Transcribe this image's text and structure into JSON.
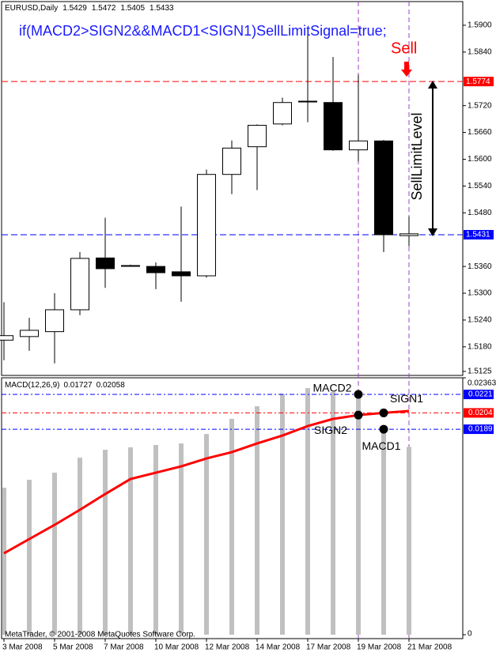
{
  "chart_data": [
    {
      "type": "candlestick",
      "title": "EURUSD,Daily",
      "categories": [
        "3 Mar 2008",
        null,
        "5 Mar 2008",
        null,
        "7 Mar 2008",
        null,
        "10 Mar 2008",
        null,
        "12 Mar 2008",
        null,
        "14 Mar 2008",
        null,
        "17 Mar 2008",
        null,
        "19 Mar 2008",
        null,
        "21 Mar 2008"
      ],
      "open": [
        1.5195,
        1.5203,
        1.5214,
        1.5263,
        1.5379,
        1.5362,
        1.536,
        1.5348,
        1.5339,
        1.5566,
        1.5628,
        1.5679,
        1.5729,
        1.5727,
        1.5621,
        1.5641,
        1.5429
      ],
      "high": [
        1.528,
        1.5245,
        1.53,
        1.5392,
        1.5469,
        1.5364,
        1.5369,
        1.5494,
        1.5577,
        1.5642,
        1.5678,
        1.5738,
        1.5882,
        1.5829,
        1.5789,
        1.5643,
        1.5472
      ],
      "low": [
        1.515,
        1.5171,
        1.5143,
        1.5251,
        1.5312,
        1.536,
        1.5309,
        1.5281,
        1.5335,
        1.5522,
        1.5531,
        1.5676,
        1.5683,
        1.5619,
        1.5595,
        1.5392,
        1.5405
      ],
      "close": [
        1.5205,
        1.5217,
        1.5263,
        1.5378,
        1.5355,
        1.5361,
        1.5346,
        1.5339,
        1.5566,
        1.5625,
        1.5676,
        1.5727,
        1.573,
        1.5621,
        1.5641,
        1.5431,
        1.5433
      ],
      "ylim": [
        1.5116,
        1.5953
      ],
      "yticks": [
        {
          "value": 1.59,
          "label": "1.5900"
        },
        {
          "value": 1.584,
          "label": "1.5840"
        },
        {
          "value": 1.572,
          "label": "1.5720"
        },
        {
          "value": 1.566,
          "label": "1.5660"
        },
        {
          "value": 1.56,
          "label": "1.5600"
        },
        {
          "value": 1.554,
          "label": "1.5540"
        },
        {
          "value": 1.548,
          "label": "1.5480"
        },
        {
          "value": 1.536,
          "label": "1.5360"
        },
        {
          "value": 1.53,
          "label": "1.5300"
        },
        {
          "value": 1.524,
          "label": "1.5240"
        },
        {
          "value": 1.518,
          "label": "1.5180"
        },
        1.5125
      ],
      "sell_limit_level": 1.5774,
      "condition": "if(MACD2>SIGN2&&MACD1<SIGN1)SellLimitSignal=true;",
      "signal_label": "Sell",
      "level_label": "SellLimitLevel"
    },
    {
      "type": "macd",
      "title": "MACD(12,26,9)",
      "series": [
        {
          "color": "#c0c0c0",
          "values": [
            0.01352,
            0.01425,
            0.0149,
            0.01628,
            0.01701,
            0.01723,
            0.01745,
            0.01759,
            0.01846,
            0.01985,
            0.02101,
            0.02217,
            0.02268,
            0.02232,
            0.0221,
            0.0189,
            0.01727
          ]
        },
        {
          "color": "#ff0000",
          "values": [
            0.00749,
            0.0088,
            0.0101,
            0.01149,
            0.01294,
            0.01432,
            0.0149,
            0.01548,
            0.01621,
            0.01679,
            0.01759,
            0.01832,
            0.01919,
            0.01985,
            0.0202,
            0.0204,
            0.02058
          ]
        }
      ],
      "ylim": [
        -0.00036,
        0.02363
      ],
      "yticks": [
        0.02363,
        0
      ],
      "point_labels": [
        "MACD2",
        "SIGN2",
        "SIGN1",
        "MACD1"
      ]
    }
  ],
  "footer": "MetaTrader, © 2001-2008 MetaQuotes Software Corp."
}
